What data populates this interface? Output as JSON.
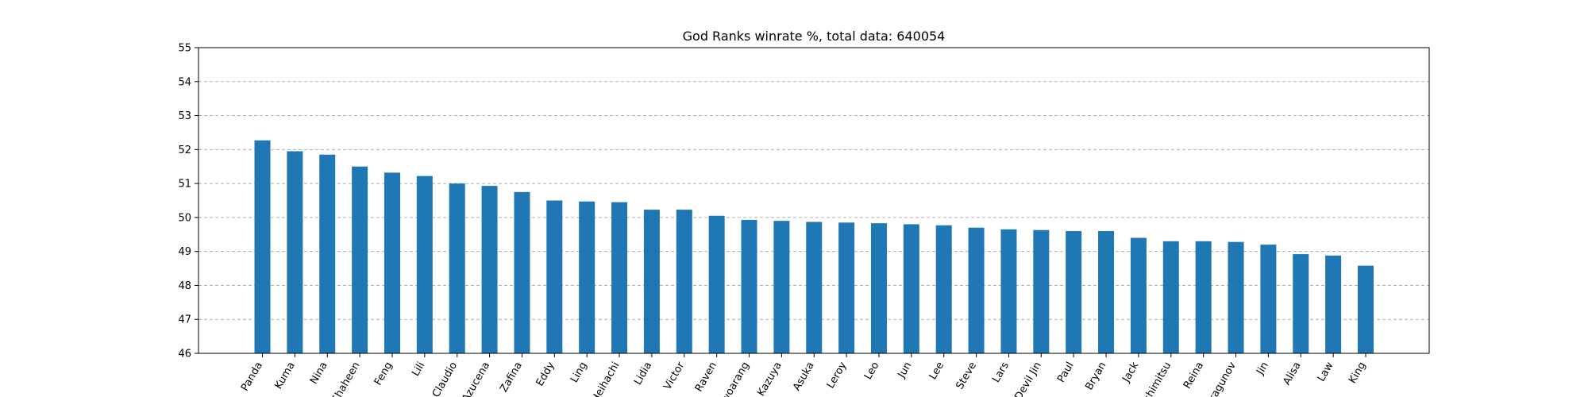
{
  "chart_data": {
    "type": "bar",
    "title": "God Ranks winrate %, total data: 640054",
    "xlabel": "",
    "ylabel": "",
    "ylim": [
      46,
      55
    ],
    "yticks": [
      "46",
      "47",
      "48",
      "49",
      "50",
      "51",
      "52",
      "53",
      "54",
      "55"
    ],
    "grid": "y-dashed",
    "bar_color": "#1f77b4",
    "categories": [
      "Panda",
      "Kuma",
      "Nina",
      "Shaheen",
      "Feng",
      "Lili",
      "Claudio",
      "Azucena",
      "Zafina",
      "Eddy",
      "Ling",
      "Heihachi",
      "Lidia",
      "Victor",
      "Raven",
      "Hwoarang",
      "Kazuya",
      "Asuka",
      "Leroy",
      "Leo",
      "Jun",
      "Lee",
      "Steve",
      "Lars",
      "Devil Jin",
      "Paul",
      "Bryan",
      "Jack",
      "Yoshimitsu",
      "Reina",
      "Dragunov",
      "Jin",
      "Alisa",
      "Law",
      "King"
    ],
    "values": [
      52.27,
      51.95,
      51.85,
      51.5,
      51.32,
      51.22,
      51.0,
      50.93,
      50.75,
      50.5,
      50.47,
      50.45,
      50.23,
      50.23,
      50.05,
      49.93,
      49.9,
      49.87,
      49.85,
      49.83,
      49.8,
      49.77,
      49.7,
      49.65,
      49.63,
      49.6,
      49.6,
      49.4,
      49.3,
      49.3,
      49.28,
      49.2,
      48.92,
      48.88,
      48.58
    ]
  }
}
